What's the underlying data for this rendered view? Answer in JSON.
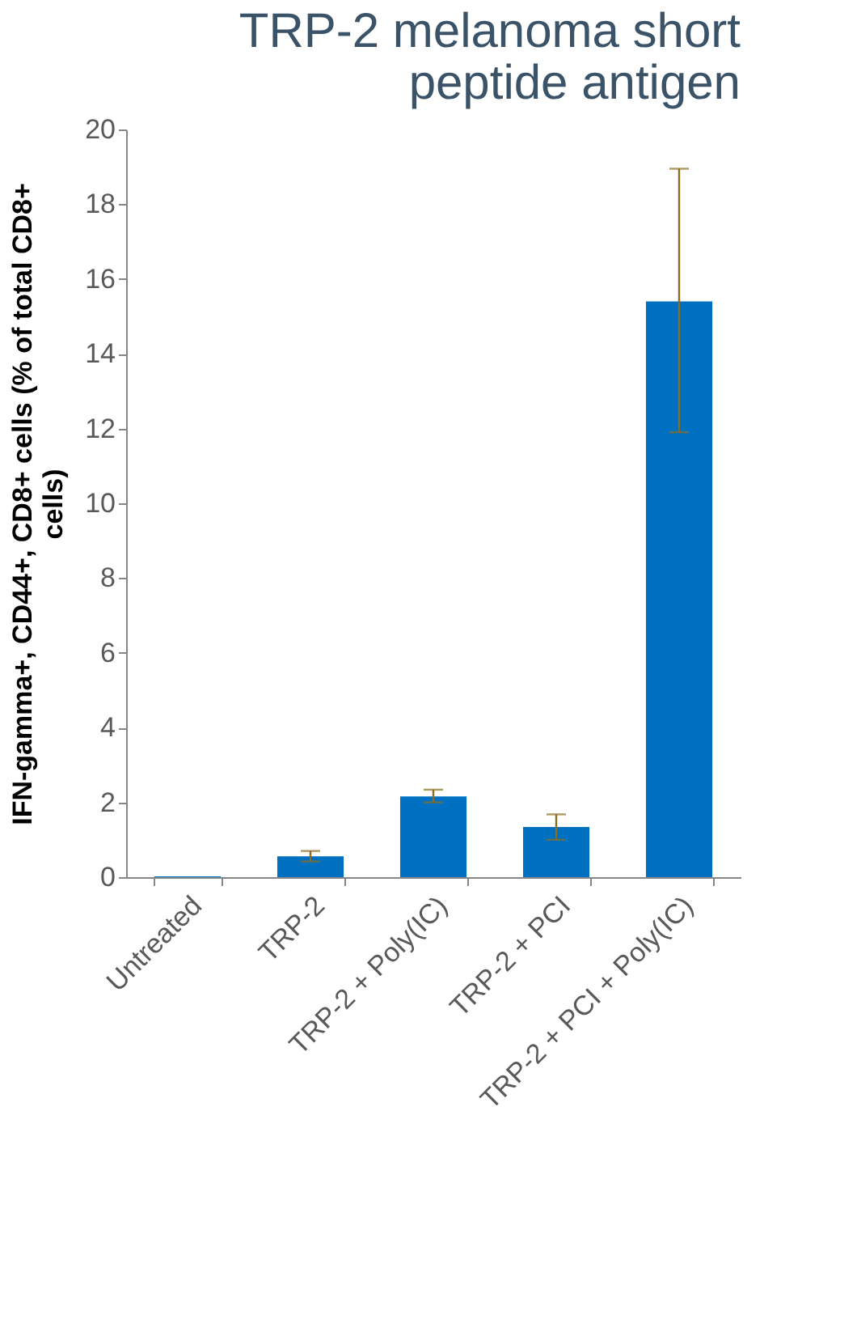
{
  "chart_data": {
    "type": "bar",
    "title": "TRP-2 melanoma short peptide antigen",
    "ylabel": "IFN-gamma+, CD44+, CD8+ cells (% of total CD8+ cells)",
    "categories": [
      "Untreated",
      "TRP-2",
      "TRP-2 + Poly(IC)",
      "TRP-2 + PCI",
      "TRP-2 + PCI + Poly(IC)"
    ],
    "values": [
      0.02,
      0.56,
      2.16,
      1.34,
      15.4
    ],
    "errors": [
      null,
      [
        0.42,
        0.7
      ],
      [
        2.0,
        2.34
      ],
      [
        1.0,
        1.68
      ],
      [
        11.9,
        18.95
      ]
    ],
    "color": "#0070c0",
    "ylim": [
      0,
      20
    ],
    "yticks": [
      0,
      2,
      4,
      6,
      8,
      10,
      12,
      14,
      16,
      18,
      20
    ],
    "grid": false
  }
}
